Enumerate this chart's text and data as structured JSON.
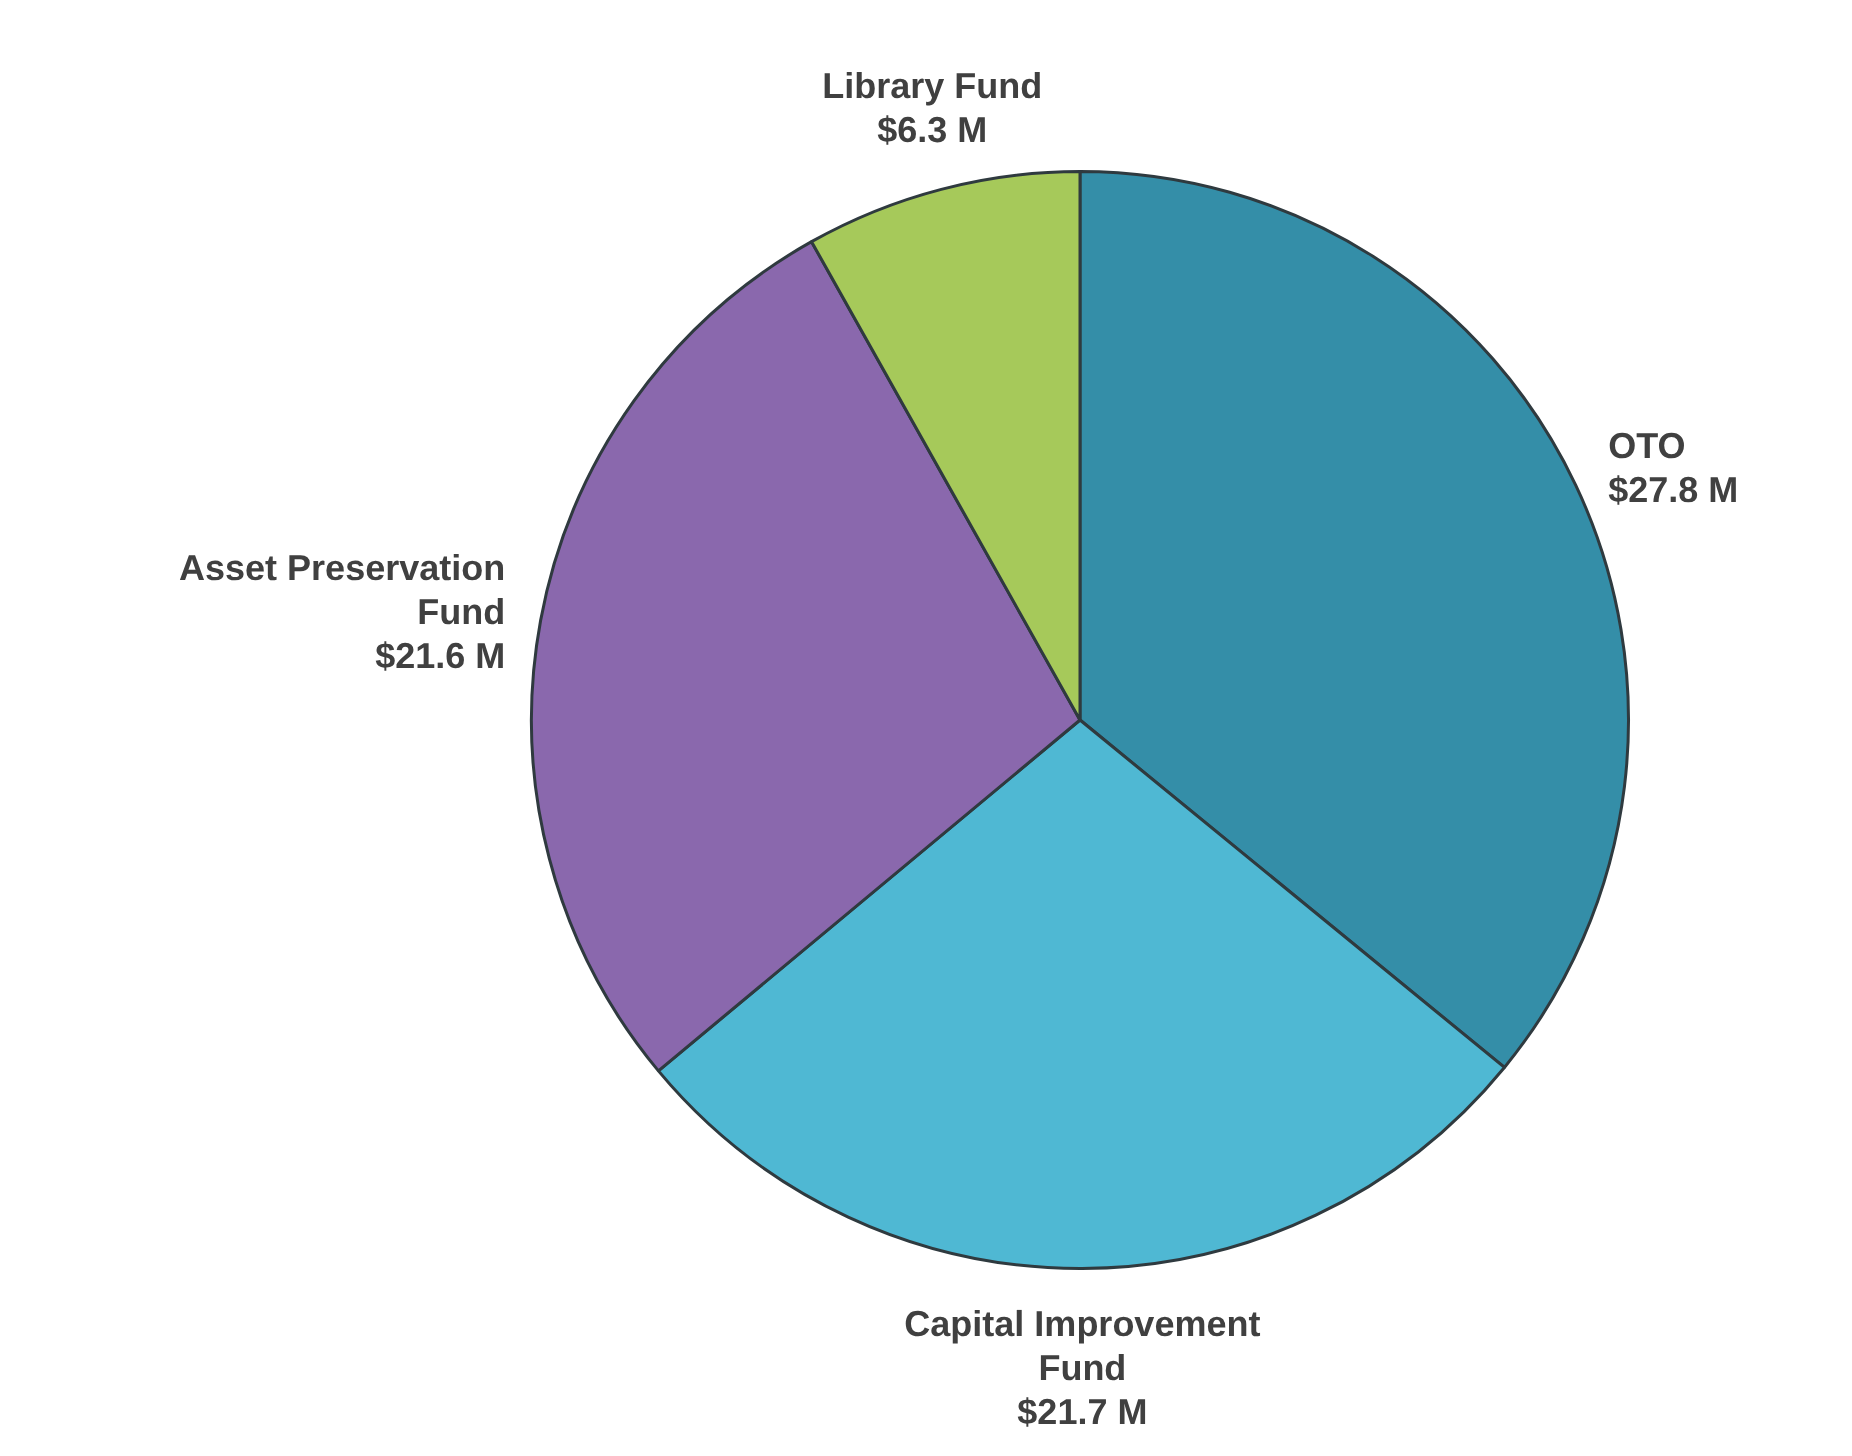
{
  "chart_data": {
    "type": "pie",
    "categories": [
      "OTO",
      "Capital Improvement Fund",
      "Asset Preservation Fund",
      "Library Fund"
    ],
    "values": [
      27.8,
      21.7,
      21.6,
      6.3
    ],
    "colors": [
      "#348ea8",
      "#4fb8d3",
      "#8a68ad",
      "#a6c95a"
    ],
    "value_labels": [
      "$27.8 M",
      "$21.7 M",
      "$21.6 M",
      "$6.3 M"
    ]
  }
}
